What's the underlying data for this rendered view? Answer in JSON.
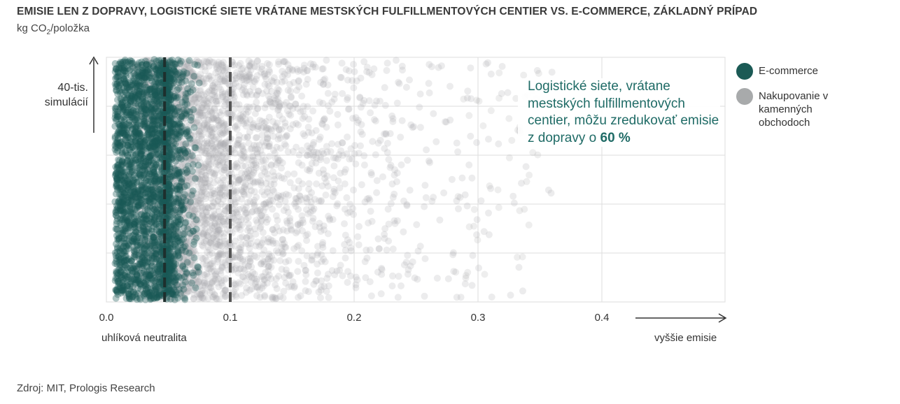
{
  "title": "EMISIE LEN Z DOPRAVY, LOGISTICKÉ SIETE VRÁTANE MESTSKÝCH FULFILLMENTOVÝCH CENTIER VS. E-COMMERCE, ZÁKLADNÝ PRÍPAD",
  "unit": {
    "prefix": "kg CO",
    "sub": "2",
    "suffix": "/položka"
  },
  "y_label": "40-tis. simulácií",
  "annotation": {
    "text": "Logistické siete, vrátane mestských fulfillmentových centier, môžu zredukovať emisie z dopravy o ",
    "highlight": "60 %"
  },
  "x_note_left": "uhlíková neutralita",
  "x_note_right": "vyššie emisie",
  "source": "Zdroj: MIT, Prologis Research",
  "colors": {
    "ecommerce": "#1b5a55",
    "store": "#a8aaab",
    "annotation": "#1f6b66",
    "grid": "#dddddd"
  },
  "chart_data": {
    "type": "scatter",
    "title": "EMISIE LEN Z DOPRAVY, LOGISTICKÉ SIETE VRÁTANE MESTSKÝCH FULFILLMENTOVÝCH CENTIER VS. E-COMMERCE, ZÁKLADNÝ PRÍPAD",
    "xlabel": "kg CO2/položka",
    "ylabel": "40-tis. simulácií",
    "xlim": [
      0,
      0.5
    ],
    "x_ticks": [
      "0.0",
      "0.1",
      "0.2",
      "0.3",
      "0.4"
    ],
    "grid": true,
    "legend_placement": "right",
    "series": [
      {
        "name": "E-commerce",
        "color": "#1b5a55",
        "x_range": [
          0.005,
          0.07
        ],
        "mean": 0.047
      },
      {
        "name": "Nakupovanie v kamenných obchodoch",
        "color": "#a8aaab",
        "x_range": [
          0.0,
          0.35
        ],
        "mean": 0.1
      }
    ]
  }
}
